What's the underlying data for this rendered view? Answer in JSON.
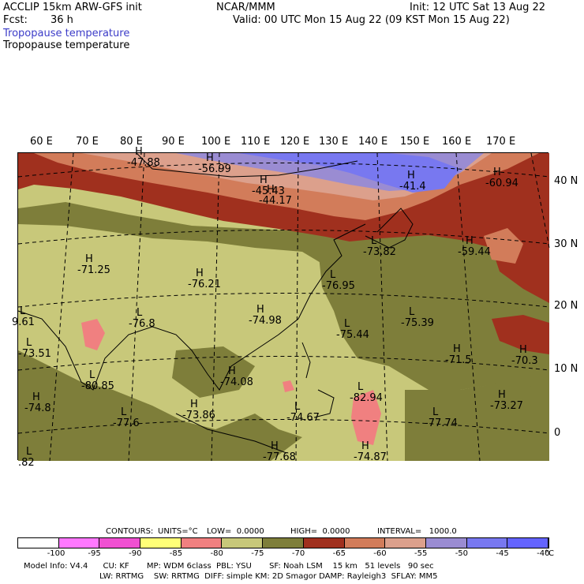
{
  "header": {
    "left_line1": "ACCLIP 15km ARW-GFS init",
    "center_line1": "NCAR/MMM",
    "right_line1": "Init: 12 UTC Sat 13 Aug 22",
    "fcst_label": "Fcst:",
    "fcst_value": "36 h",
    "right_line2": "Valid: 00 UTC Mon 15 Aug 22 (09 KST Mon 15 Aug 22)",
    "field_title_1": "Tropopause temperature",
    "field_title_2": "Tropopause temperature"
  },
  "map": {
    "lon_labels": [
      "60 E",
      "70 E",
      "80 E",
      "90 E",
      "100 E",
      "110 E",
      "120 E",
      "130 E",
      "140 E",
      "150 E",
      "160 E",
      "170 E"
    ],
    "lat_labels": [
      "40 N",
      "30 N",
      "20 N",
      "10 N",
      "0"
    ],
    "colors": {
      "lt_-75": "#c8c87a",
      "-75_-70": "#7e7e3a",
      "-70_-65": "#a0301e",
      "-65_-60": "#d27c5a",
      "-60_-55": "#dca08c",
      "-55_-50": "#9a8cd2",
      "-50_-45": "#7878f0",
      "-85_-80": "#f08080"
    },
    "markers": [
      {
        "type": "H",
        "value": "-47.88"
      },
      {
        "type": "H",
        "value": "-56.99"
      },
      {
        "type": "H",
        "value": "-44.17"
      },
      {
        "type": "H",
        "value": "-45.43"
      },
      {
        "type": "H",
        "value": "-41.4"
      },
      {
        "type": "H",
        "value": "-60.94"
      },
      {
        "type": "H",
        "value": "-59.44"
      },
      {
        "type": "L",
        "value": "-73.82"
      },
      {
        "type": "H",
        "value": "-71.25"
      },
      {
        "type": "H",
        "value": "-76.21"
      },
      {
        "type": "L",
        "value": "-76.95"
      },
      {
        "type": "H",
        "value": "-74.98"
      },
      {
        "type": "L",
        "value": "-76.8"
      },
      {
        "type": "L",
        "value": "-75.44"
      },
      {
        "type": "L",
        "value": "-75.39"
      },
      {
        "type": "H",
        "value": "-71.5"
      },
      {
        "type": "H",
        "value": "-70.3"
      },
      {
        "type": "L",
        "value": "-73.51"
      },
      {
        "type": "H",
        "value": "-74.08"
      },
      {
        "type": "L",
        "value": "-80.85"
      },
      {
        "type": "L",
        "value": "-82.94"
      },
      {
        "type": "H",
        "value": "-74.8"
      },
      {
        "type": "L",
        "value": "-77.6"
      },
      {
        "type": "H",
        "value": "-73.86"
      },
      {
        "type": "L",
        "value": "-74.67"
      },
      {
        "type": "L",
        "value": "-77.74"
      },
      {
        "type": "H",
        "value": "-73.27"
      },
      {
        "type": "H",
        "value": "-74.87"
      },
      {
        "type": "H",
        "value": "-77.68"
      },
      {
        "type": "L",
        "value": ".82"
      },
      {
        "type": "L",
        "value": "9.61"
      }
    ]
  },
  "contours": {
    "label": "CONTOURS:",
    "units": "UNITS=°C",
    "low": "LOW=  0.0000",
    "high": "HIGH=  0.0000",
    "interval": "INTERVAL=   1000.0"
  },
  "colorbar": {
    "colors": [
      "#ffffff",
      "#ff78ff",
      "#f050d2",
      "#ffff78",
      "#f08080",
      "#c8c87a",
      "#7e7e3a",
      "#a0301e",
      "#d27c5a",
      "#dca08c",
      "#9a8cd2",
      "#7878f0",
      "#6464ff"
    ],
    "tick_labels": [
      "-100",
      "-95",
      "-90",
      "-85",
      "-80",
      "-75",
      "-70",
      "-65",
      "-60",
      "-55",
      "-50",
      "-45",
      "-40"
    ],
    "unit": "°C"
  },
  "footer": {
    "line1": "Model Info: V4.4      CU: KF       MP: WDM 6class  PBL: YSU       SF: Noah LSM    15 km   51 levels   90 sec",
    "line2": "LW: RRTMG    SW: RRTMG  DIFF: simple KM: 2D Smagor DAMP: Rayleigh3  SFLAY: MM5"
  }
}
